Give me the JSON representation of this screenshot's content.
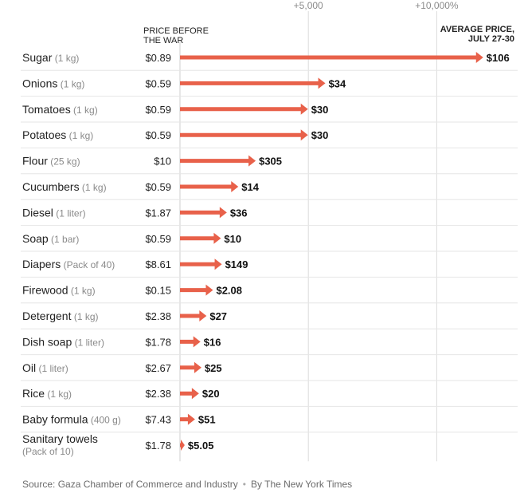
{
  "chart_data": {
    "type": "bar",
    "header_before": [
      "PRICE BEFORE",
      "THE WAR"
    ],
    "header_after": [
      "AVERAGE PRICE,",
      "JULY 27-30"
    ],
    "x_ticks": [
      {
        "value": 5000,
        "label": "+5,000"
      },
      {
        "value": 10000,
        "label": "+10,000%"
      }
    ],
    "x_unit": "percent increase",
    "xlim": [
      0,
      12000
    ],
    "color": "#e8614a",
    "categories": [
      {
        "name": "Sugar",
        "unit": "(1 kg)",
        "before": "$0.89",
        "after": "$106",
        "before_value": 0.89,
        "after_value": 106
      },
      {
        "name": "Onions",
        "unit": "(1 kg)",
        "before": "$0.59",
        "after": "$34",
        "before_value": 0.59,
        "after_value": 34
      },
      {
        "name": "Tomatoes",
        "unit": "(1 kg)",
        "before": "$0.59",
        "after": "$30",
        "before_value": 0.59,
        "after_value": 30
      },
      {
        "name": "Potatoes",
        "unit": "(1 kg)",
        "before": "$0.59",
        "after": "$30",
        "before_value": 0.59,
        "after_value": 30
      },
      {
        "name": "Flour",
        "unit": "(25 kg)",
        "before": "$10",
        "after": "$305",
        "before_value": 10,
        "after_value": 305
      },
      {
        "name": "Cucumbers",
        "unit": "(1 kg)",
        "before": "$0.59",
        "after": "$14",
        "before_value": 0.59,
        "after_value": 14
      },
      {
        "name": "Diesel",
        "unit": "(1 liter)",
        "before": "$1.87",
        "after": "$36",
        "before_value": 1.87,
        "after_value": 36
      },
      {
        "name": "Soap",
        "unit": "(1 bar)",
        "before": "$0.59",
        "after": "$10",
        "before_value": 0.59,
        "after_value": 10
      },
      {
        "name": "Diapers",
        "unit": "(Pack of 40)",
        "before": "$8.61",
        "after": "$149",
        "before_value": 8.61,
        "after_value": 149
      },
      {
        "name": "Firewood",
        "unit": "(1 kg)",
        "before": "$0.15",
        "after": "$2.08",
        "before_value": 0.15,
        "after_value": 2.08
      },
      {
        "name": "Detergent",
        "unit": "(1 kg)",
        "before": "$2.38",
        "after": "$27",
        "before_value": 2.38,
        "after_value": 27
      },
      {
        "name": "Dish soap",
        "unit": "(1 liter)",
        "before": "$1.78",
        "after": "$16",
        "before_value": 1.78,
        "after_value": 16
      },
      {
        "name": "Oil",
        "unit": "(1 liter)",
        "before": "$2.67",
        "after": "$25",
        "before_value": 2.67,
        "after_value": 25
      },
      {
        "name": "Rice",
        "unit": "(1 kg)",
        "before": "$2.38",
        "after": "$20",
        "before_value": 2.38,
        "after_value": 20
      },
      {
        "name": "Baby formula",
        "unit": "(400 g)",
        "before": "$7.43",
        "after": "$51",
        "before_value": 7.43,
        "after_value": 51
      },
      {
        "name": "Sanitary towels",
        "unit": "(Pack of 10)",
        "before": "$1.78",
        "after": "$5.05",
        "before_value": 1.78,
        "after_value": 5.05
      }
    ]
  },
  "footer": {
    "source": "Source: Gaza Chamber of Commerce and Industry",
    "byline": "By The New York Times"
  }
}
